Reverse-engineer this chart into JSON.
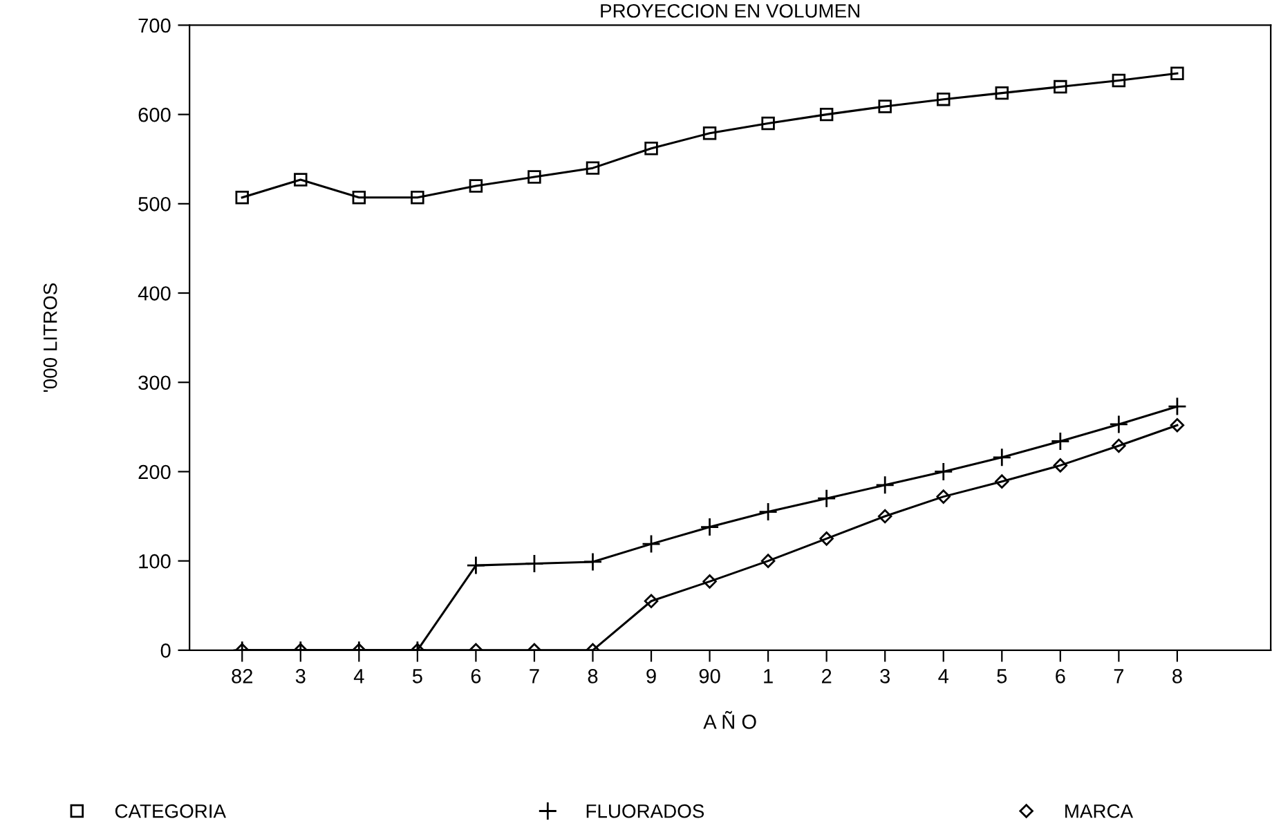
{
  "chart_data": {
    "type": "line",
    "title": "PROYECCION EN VOLUMEN",
    "xlabel": "A Ñ O",
    "ylabel": "'000 LITROS",
    "categories": [
      "82",
      "3",
      "4",
      "5",
      "6",
      "7",
      "8",
      "9",
      "90",
      "1",
      "2",
      "3",
      "4",
      "5",
      "6",
      "7",
      "8"
    ],
    "series": [
      {
        "name": "CATEGORIA",
        "color": "#000000",
        "marker": "square",
        "values": [
          507,
          527,
          507,
          507,
          520,
          530,
          540,
          562,
          579,
          590,
          600,
          609,
          617,
          624,
          631,
          638,
          646
        ]
      },
      {
        "name": "FLUORADOS",
        "color": "#000000",
        "marker": "cross",
        "values": [
          0,
          0,
          0,
          0,
          95,
          97,
          99,
          119,
          138,
          155,
          170,
          185,
          200,
          216,
          234,
          253,
          273
        ]
      },
      {
        "name": "MARCA",
        "color": "#000000",
        "marker": "diamond",
        "values": [
          0,
          0,
          0,
          0,
          0,
          0,
          0,
          55,
          77,
          100,
          125,
          150,
          172,
          189,
          207,
          229,
          252
        ]
      }
    ],
    "ylim": [
      0,
      700
    ],
    "yticks": [
      0,
      100,
      200,
      300,
      400,
      500,
      600,
      700
    ],
    "grid": false,
    "legend": "bottom",
    "line_style": "solid"
  }
}
